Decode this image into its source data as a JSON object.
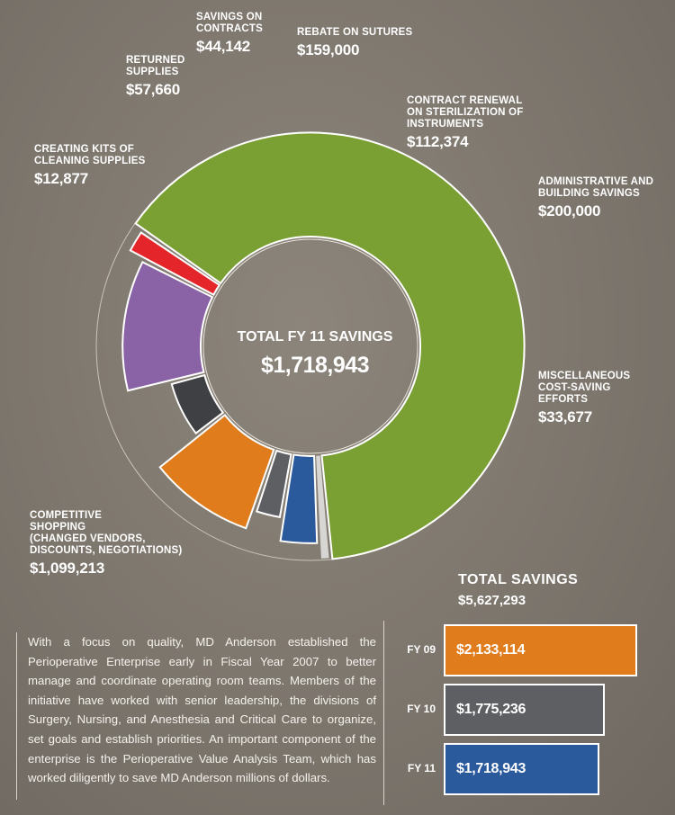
{
  "chart_data": [
    {
      "type": "donut",
      "title": "TOTAL FY 11 SAVINGS",
      "total": "$1,718,943",
      "slices": [
        {
          "label": "COMPETITIVE SHOPPING (CHANGED VENDORS, DISCOUNTS, NEGOTIATIONS)",
          "value": 1099213,
          "display": "$1,099,213",
          "color": "#7a9f33"
        },
        {
          "label": "CREATING KITS OF CLEANING SUPPLIES",
          "value": 12877,
          "display": "$12,877",
          "color": "#d8d6d3"
        },
        {
          "label": "RETURNED SUPPLIES",
          "value": 57660,
          "display": "$57,660",
          "color": "#2a5a9c"
        },
        {
          "label": "SAVINGS ON CONTRACTS",
          "value": 44142,
          "display": "$44,142",
          "color": "#5e5f62"
        },
        {
          "label": "REBATE ON SUTURES",
          "value": 159000,
          "display": "$159,000",
          "color": "#e07c1b"
        },
        {
          "label": "CONTRACT RENEWAL ON STERILIZATION OF INSTRUMENTS",
          "value": 112374,
          "display": "$112,374",
          "color": "#3f4043"
        },
        {
          "label": "ADMINISTRATIVE AND BUILDING SAVINGS",
          "value": 200000,
          "display": "$200,000",
          "color": "#8a63a6"
        },
        {
          "label": "MISCELLANEOUS COST-SAVING EFFORTS",
          "value": 33677,
          "display": "$33,677",
          "color": "#e4262b"
        }
      ]
    },
    {
      "type": "bar",
      "title": "TOTAL SAVINGS",
      "total": "$5,627,293",
      "categories": [
        "FY 09",
        "FY 10",
        "FY 11"
      ],
      "values": [
        2133114,
        1775236,
        1718943
      ],
      "displays": [
        "$2,133,114",
        "$1,775,236",
        "$1,718,943"
      ],
      "colors": [
        "#e07c1b",
        "#5e5f62",
        "#2a5a9c"
      ]
    }
  ],
  "labels": {
    "competitive": {
      "name": "COMPETITIVE\nSHOPPING\n(CHANGED VENDORS,\nDISCOUNTS, NEGOTIATIONS)",
      "amount": "$1,099,213"
    },
    "kits": {
      "name": "CREATING KITS OF\nCLEANING SUPPLIES",
      "amount": "$12,877"
    },
    "returned": {
      "name": "RETURNED\nSUPPLIES",
      "amount": "$57,660"
    },
    "contracts": {
      "name": "SAVINGS ON\nCONTRACTS",
      "amount": "$44,142"
    },
    "sutures": {
      "name": "REBATE ON SUTURES",
      "amount": "$159,000"
    },
    "sterilization": {
      "name": "CONTRACT RENEWAL\nON STERILIZATION OF\nINSTRUMENTS",
      "amount": "$112,374"
    },
    "admin": {
      "name": "ADMINISTRATIVE AND\nBUILDING SAVINGS",
      "amount": "$200,000"
    },
    "misc": {
      "name": "MISCELLANEOUS\nCOST-SAVING\nEFFORTS",
      "amount": "$33,677"
    }
  },
  "center": {
    "title": "TOTAL FY 11 SAVINGS",
    "amount": "$1,718,943"
  },
  "totals": {
    "heading": "TOTAL  SAVINGS",
    "amount": "$5,627,293"
  },
  "paragraph": "With a focus on quality, MD Anderson established the Perioperative Enterprise early in Fiscal Year 2007 to better manage and coordinate operating room teams. Members of the initiative have worked with senior leadership, the divisions of Surgery, Nursing, and Anesthesia and Critical Care to organize, set goals and establish priorities. An important component of the enterprise is the Perioperative Value Analysis Team, which has worked diligently to save MD Anderson millions of dollars."
}
